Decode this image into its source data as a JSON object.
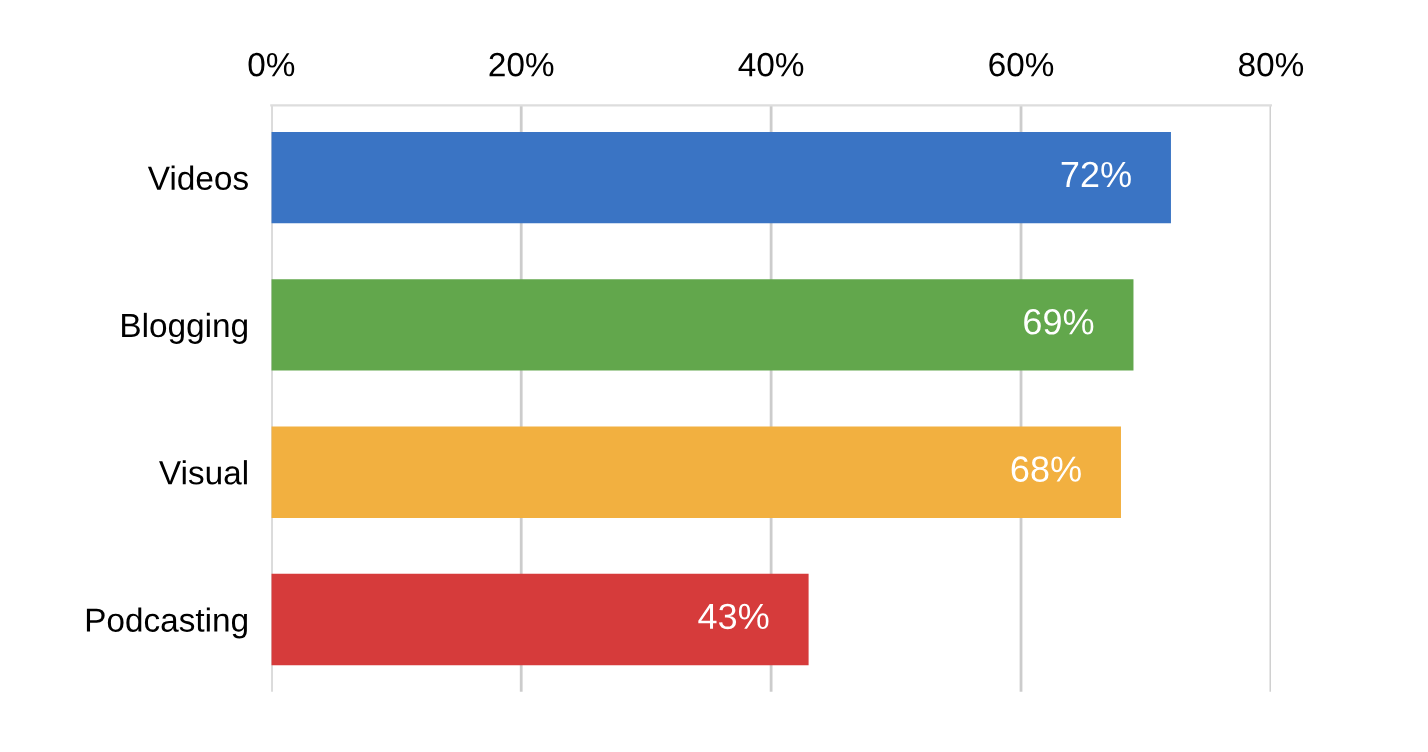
{
  "chart_data": {
    "type": "bar",
    "orientation": "horizontal",
    "categories": [
      "Videos",
      "Blogging",
      "Visual",
      "Podcasting"
    ],
    "values": [
      72,
      69,
      68,
      43
    ],
    "colors": [
      "#3a74c4",
      "#62a74c",
      "#f2b040",
      "#d63b3b"
    ],
    "value_labels": [
      "72%",
      "69%",
      "68%",
      "43%"
    ],
    "xlim": [
      0,
      80
    ],
    "xticks": [
      {
        "value": 0,
        "label": "0%"
      },
      {
        "value": 20,
        "label": "20%"
      },
      {
        "value": 40,
        "label": "40%"
      },
      {
        "value": 60,
        "label": "60%"
      },
      {
        "value": 80,
        "label": "80%"
      }
    ],
    "grid": "x",
    "legend": false
  }
}
